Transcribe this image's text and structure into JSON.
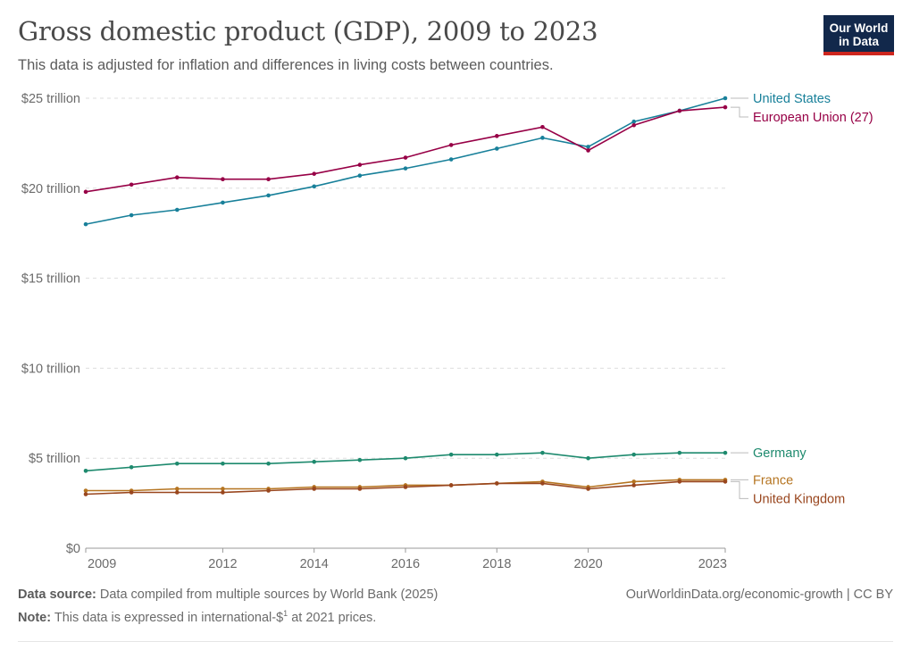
{
  "header": {
    "title": "Gross domestic product (GDP), 2009 to 2023",
    "subtitle": "This data is adjusted for inflation and differences in living costs between countries.",
    "logo_line1": "Our World",
    "logo_line2": "in Data"
  },
  "footer": {
    "source_label": "Data source:",
    "source_text": "Data compiled from multiple sources by World Bank (2025)",
    "note_label": "Note:",
    "note_text": "This data is expressed in international-$",
    "note_sup": "1",
    "note_tail": "at 2021 prices.",
    "right_text": "OurWorldinData.org/economic-growth | CC BY"
  },
  "colors": {
    "brand_bg": "#12284b",
    "brand_accent": "#ce261e"
  },
  "chart_data": {
    "type": "line",
    "title": "Gross domestic product (GDP), 2009 to 2023",
    "xlim": [
      2009,
      2023
    ],
    "ylim": [
      0,
      25
    ],
    "x_ticks": [
      2009,
      2012,
      2014,
      2016,
      2018,
      2020,
      2023
    ],
    "y_ticks": [
      {
        "value": 0,
        "label": "$0"
      },
      {
        "value": 5,
        "label": "$5 trillion"
      },
      {
        "value": 10,
        "label": "$10 trillion"
      },
      {
        "value": 15,
        "label": "$15 trillion"
      },
      {
        "value": 20,
        "label": "$20 trillion"
      },
      {
        "value": 25,
        "label": "$25 trillion"
      }
    ],
    "grid": "horizontal dashed",
    "legend": "right, inline labels",
    "x": [
      2009,
      2010,
      2011,
      2012,
      2013,
      2014,
      2015,
      2016,
      2017,
      2018,
      2019,
      2020,
      2021,
      2022,
      2023
    ],
    "series": [
      {
        "name": "United States",
        "color": "#18809a",
        "values": [
          18.0,
          18.5,
          18.8,
          19.2,
          19.6,
          20.1,
          20.7,
          21.1,
          21.6,
          22.2,
          22.8,
          22.3,
          23.7,
          24.3,
          25.0
        ]
      },
      {
        "name": "European Union (27)",
        "color": "#970046",
        "values": [
          19.8,
          20.2,
          20.6,
          20.5,
          20.5,
          20.8,
          21.3,
          21.7,
          22.4,
          22.9,
          23.4,
          22.1,
          23.5,
          24.3,
          24.5
        ]
      },
      {
        "name": "Germany",
        "color": "#1e8a6e",
        "values": [
          4.3,
          4.5,
          4.7,
          4.7,
          4.7,
          4.8,
          4.9,
          5.0,
          5.2,
          5.2,
          5.3,
          5.0,
          5.2,
          5.3,
          5.3
        ]
      },
      {
        "name": "France",
        "color": "#b57420",
        "values": [
          3.2,
          3.2,
          3.3,
          3.3,
          3.3,
          3.4,
          3.4,
          3.5,
          3.5,
          3.6,
          3.7,
          3.4,
          3.7,
          3.8,
          3.8
        ]
      },
      {
        "name": "United Kingdom",
        "color": "#99461e",
        "values": [
          3.0,
          3.1,
          3.1,
          3.1,
          3.2,
          3.3,
          3.3,
          3.4,
          3.5,
          3.6,
          3.6,
          3.3,
          3.5,
          3.7,
          3.7
        ]
      }
    ]
  }
}
